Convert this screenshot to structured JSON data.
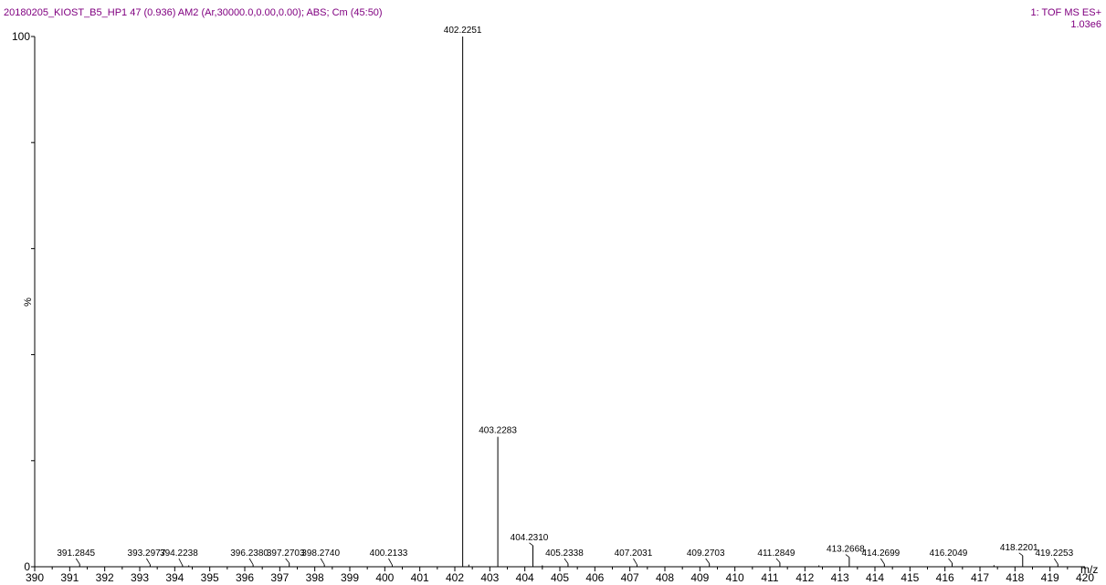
{
  "header": {
    "left": "20180205_KIOST_B5_HP1 47 (0.936) AM2 (Ar,30000.0,0.00,0.00); ABS; Cm (45:50)",
    "right_line1": "1: TOF MS ES+",
    "right_line2": "1.03e6"
  },
  "colors": {
    "header_text": "#800080",
    "axis": "#000000",
    "spectrum": "#000000"
  },
  "chart_data": {
    "type": "bar",
    "title": "",
    "xlabel": "m/z",
    "ylabel": "%",
    "xlim": [
      390,
      420
    ],
    "ylim": [
      0,
      100
    ],
    "x_ticks": [
      "390",
      "391",
      "392",
      "393",
      "394",
      "395",
      "396",
      "397",
      "398",
      "399",
      "400",
      "401",
      "402",
      "403",
      "404",
      "405",
      "406",
      "407",
      "408",
      "409",
      "410",
      "411",
      "412",
      "413",
      "414",
      "415",
      "416",
      "417",
      "418",
      "419",
      "420"
    ],
    "y_ticks": [
      "0",
      "100"
    ],
    "peaks": [
      {
        "mz": 391.2845,
        "intensity": 0.5,
        "label": "391.2845"
      },
      {
        "mz": 393.2977,
        "intensity": 0.4,
        "label": "393.2977"
      },
      {
        "mz": 394.2238,
        "intensity": 0.2,
        "label": "394.2238"
      },
      {
        "mz": 396.238,
        "intensity": 0.4,
        "label": "396.2380"
      },
      {
        "mz": 397.2703,
        "intensity": 0.7,
        "label": "397.2703"
      },
      {
        "mz": 398.274,
        "intensity": 0.4,
        "label": "398.2740"
      },
      {
        "mz": 400.2133,
        "intensity": 0.3,
        "label": "400.2133"
      },
      {
        "mz": 402.2251,
        "intensity": 100,
        "label": "402.2251"
      },
      {
        "mz": 403.2283,
        "intensity": 24.5,
        "label": "403.2283"
      },
      {
        "mz": 404.231,
        "intensity": 4.0,
        "label": "404.2310"
      },
      {
        "mz": 405.2338,
        "intensity": 0.6,
        "label": "405.2338"
      },
      {
        "mz": 407.2031,
        "intensity": 0.4,
        "label": "407.2031"
      },
      {
        "mz": 409.2703,
        "intensity": 0.6,
        "label": "409.2703"
      },
      {
        "mz": 411.2849,
        "intensity": 0.8,
        "label": "411.2849"
      },
      {
        "mz": 413.2668,
        "intensity": 1.8,
        "label": "413.2668"
      },
      {
        "mz": 414.2699,
        "intensity": 0.5,
        "label": "414.2699"
      },
      {
        "mz": 416.2049,
        "intensity": 0.7,
        "label": "416.2049"
      },
      {
        "mz": 418.2201,
        "intensity": 2.1,
        "label": "418.2201"
      },
      {
        "mz": 419.2253,
        "intensity": 0.5,
        "label": "419.2253"
      }
    ],
    "minor_peaks": [
      {
        "mz": 394.4,
        "intensity": 0.2
      },
      {
        "mz": 402.4,
        "intensity": 0.4
      },
      {
        "mz": 404.5,
        "intensity": 0.2
      },
      {
        "mz": 412.4,
        "intensity": 0.2
      },
      {
        "mz": 417.4,
        "intensity": 0.3
      }
    ],
    "grid": false
  }
}
